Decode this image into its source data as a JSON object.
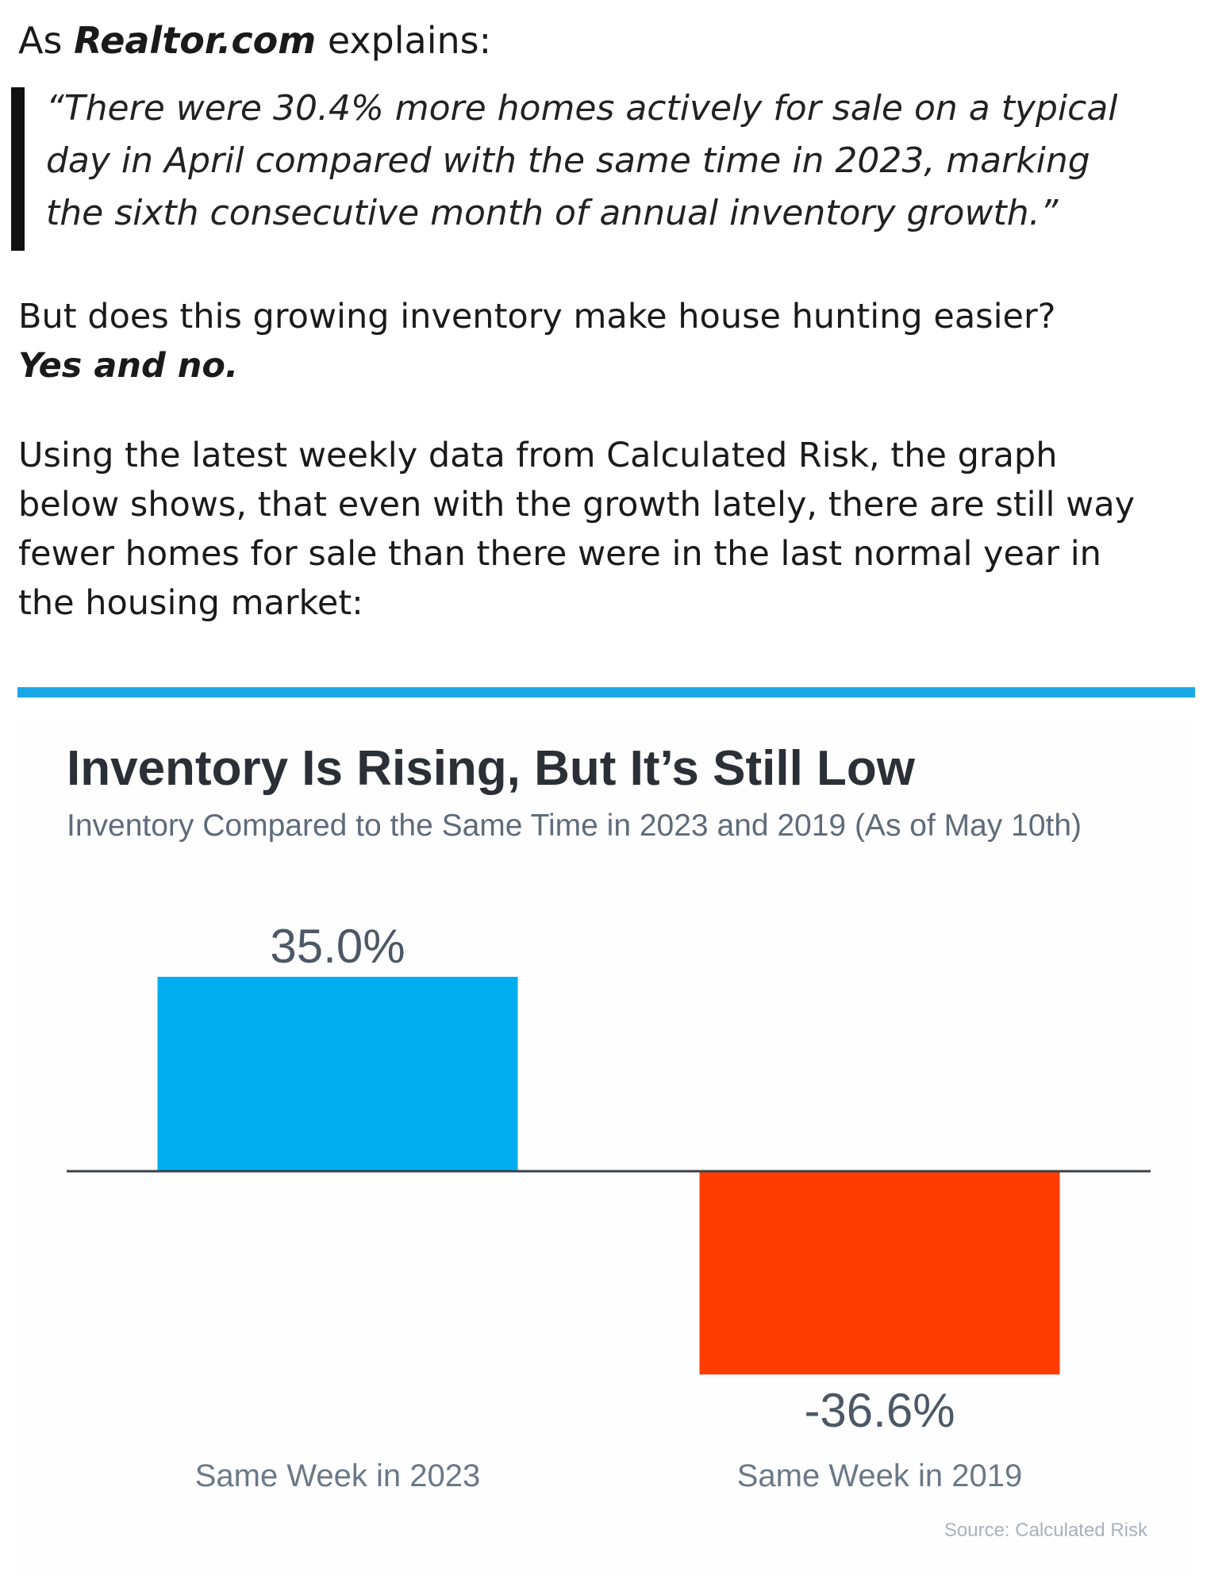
{
  "lead": {
    "prefix": "As ",
    "source_name": "Realtor.com",
    "suffix": " explains:"
  },
  "quote": {
    "lines": [
      "“There were 30.4% more homes actively for sale on a typical",
      "day in April compared with the same time in 2023, marking",
      "the sixth consecutive month of annual inventory growth.”"
    ]
  },
  "paragraph1": {
    "question": "But does this growing inventory make house hunting easier?",
    "answer": "Yes and no."
  },
  "paragraph2": {
    "lines": [
      "Using the latest weekly data from Calculated Risk, the graph",
      "below shows, that even with the growth lately, there are still way",
      "fewer homes for sale than there were in the last normal year in",
      "the housing market:"
    ]
  },
  "colors": {
    "accent_rule": "#1aa7e8",
    "bar_positive": "#00aeef",
    "bar_negative": "#ff3d00",
    "baseline": "#3c4048"
  },
  "chart_data": {
    "type": "bar",
    "title": "Inventory Is Rising, But It’s Still Low",
    "subtitle": "Inventory Compared to the Same Time in 2023 and 2019 (As of May 10th)",
    "categories": [
      "Same Week in 2023",
      "Same Week in 2019"
    ],
    "values": [
      35.0,
      -36.6
    ],
    "value_labels": [
      "35.0%",
      "-36.6%"
    ],
    "ylim": [
      -40,
      40
    ],
    "grid": false,
    "legend": "none",
    "source": "Source: Calculated Risk"
  }
}
